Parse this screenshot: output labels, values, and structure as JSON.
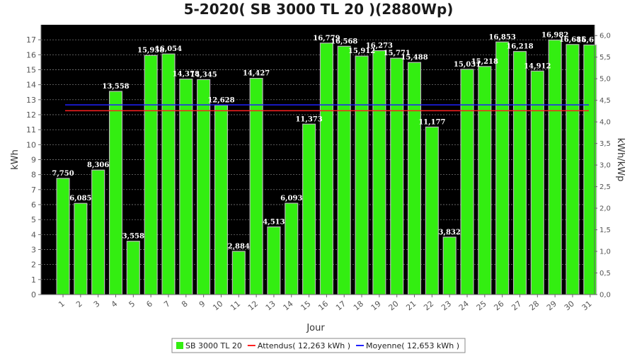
{
  "chart_data": {
    "type": "bar",
    "title": "5-2020( SB 3000 TL 20 )(2880Wp)",
    "xlabel": "Jour",
    "ylabel": "kWh",
    "ylabel_right": "kWh/kWp",
    "ylim": [
      0,
      18
    ],
    "ylim_right": [
      0,
      6.25
    ],
    "yticks": [
      "0",
      "1",
      "2",
      "3",
      "4",
      "5",
      "6",
      "7",
      "8",
      "9",
      "10",
      "11",
      "12",
      "13",
      "14",
      "15",
      "16",
      "17"
    ],
    "yticks_right": [
      "0,0",
      "0,5",
      "1,0",
      "1,5",
      "2,0",
      "2,5",
      "3,0",
      "3,5",
      "4,0",
      "4,5",
      "5,0",
      "5,5",
      "6,0"
    ],
    "categories": [
      "1",
      "2",
      "3",
      "4",
      "5",
      "6",
      "7",
      "8",
      "9",
      "10",
      "11",
      "12",
      "13",
      "14",
      "15",
      "16",
      "17",
      "18",
      "19",
      "20",
      "21",
      "22",
      "23",
      "24",
      "25",
      "26",
      "27",
      "28",
      "29",
      "30",
      "31"
    ],
    "values": [
      7.75,
      6.085,
      8.306,
      13.558,
      3.558,
      15.958,
      16.054,
      14.378,
      14.345,
      12.628,
      2.884,
      14.427,
      4.513,
      6.093,
      11.373,
      16.779,
      16.568,
      15.912,
      16.273,
      15.771,
      15.488,
      11.177,
      3.832,
      15.031,
      15.218,
      16.853,
      16.218,
      14.912,
      16.982,
      16.685,
      16.652
    ],
    "value_labels": [
      "7,750",
      "6,085",
      "8,306",
      "13,558",
      "3,558",
      "15,958",
      "16,054",
      "14,378",
      "14,345",
      "12,628",
      "2,884",
      "14,427",
      "4,513",
      "6,093",
      "11,373",
      "16,779",
      "16,568",
      "15,912",
      "16,273",
      "15,771",
      "15,488",
      "11,177",
      "3,832",
      "15,031",
      "15,218",
      "16,853",
      "16,218",
      "14,912",
      "16,982",
      "16,685",
      "16,652"
    ],
    "reference_lines": [
      {
        "name": "Attendus",
        "value": 12.263,
        "color": "#ff2020"
      },
      {
        "name": "Moyenne",
        "value": 12.653,
        "color": "#2020ff"
      }
    ],
    "series": [
      {
        "name": "SB 3000 TL 20",
        "color": "#33ee11"
      }
    ],
    "grid": true,
    "plot_background": "#000000",
    "legend_placement": "bottom-center"
  },
  "legend": {
    "items": [
      {
        "label": "SB 3000 TL 20",
        "color": "#33ee11",
        "shape": "square"
      },
      {
        "label": "Attendus( 12,263 kWh )",
        "color": "#ff2020",
        "shape": "line"
      },
      {
        "label": "Moyenne( 12,653 kWh )",
        "color": "#2020ff",
        "shape": "line"
      }
    ]
  }
}
